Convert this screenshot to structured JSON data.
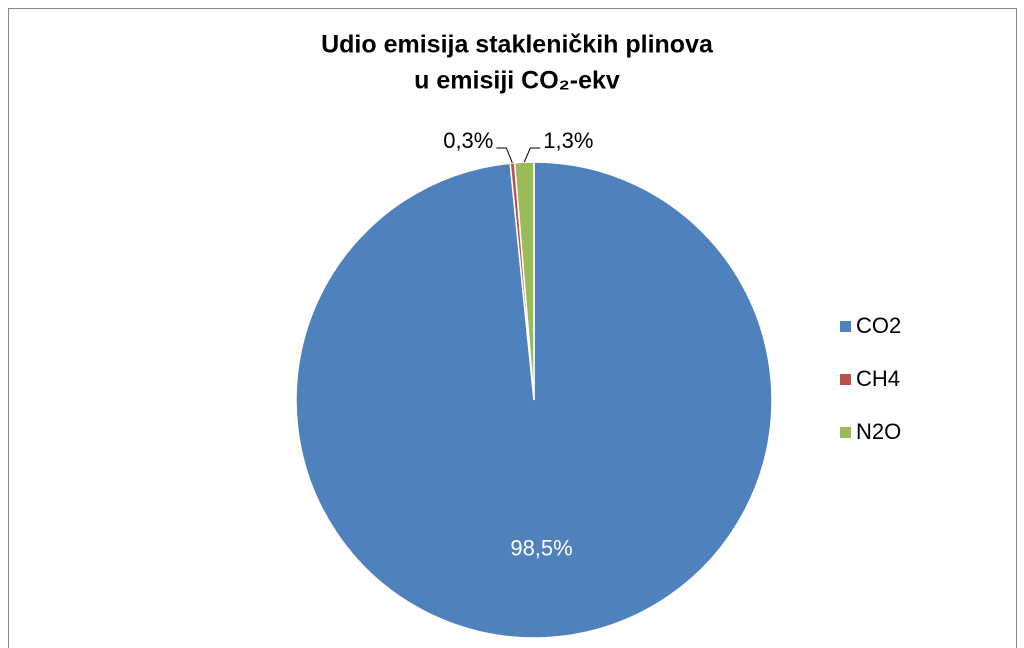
{
  "chart_data": {
    "type": "pie",
    "title": [
      "Udio emisija stakleničkih plinova",
      "u emisiji CO₂-ekv"
    ],
    "categories": [
      "CO2",
      "CH4",
      "N2O"
    ],
    "values": [
      98.5,
      0.3,
      1.3
    ],
    "value_labels": [
      "98,5%",
      "0,3%",
      "1,3%"
    ],
    "colors": [
      "#4f81bd",
      "#c0504d",
      "#9bbb59"
    ],
    "legend": "right"
  }
}
